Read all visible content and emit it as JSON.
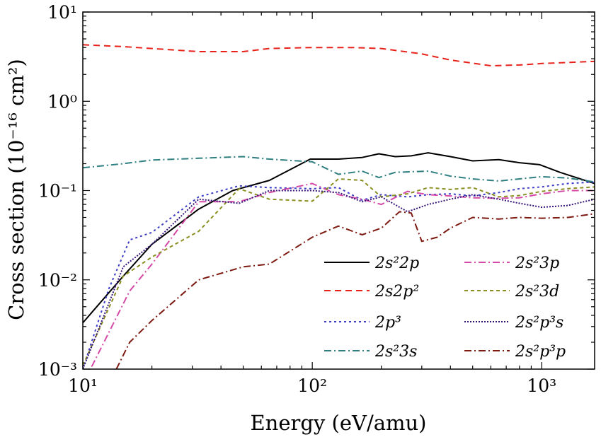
{
  "chart_data": {
    "type": "line",
    "xscale": "log",
    "yscale": "log",
    "xlim": [
      10,
      1700
    ],
    "ylim": [
      0.001,
      10
    ],
    "xlabel": "Energy (eV/amu)",
    "ylabel": "Cross section (10⁻¹⁶ cm²)",
    "x_ticks": [
      10,
      100,
      1000
    ],
    "x_tick_labels": [
      "10¹",
      "10²",
      "10³"
    ],
    "y_ticks": [
      0.001,
      0.01,
      0.1,
      1,
      10
    ],
    "y_tick_labels": [
      "10⁻³",
      "10⁻²",
      "10⁻¹",
      "10⁰",
      "10¹"
    ],
    "legend_position": "lower-right",
    "series": [
      {
        "name": "2s²2p",
        "color": "#000000",
        "dash": "solid",
        "x": [
          10,
          15,
          20,
          32,
          45,
          65,
          98,
          130,
          165,
          195,
          230,
          270,
          320,
          400,
          500,
          650,
          800,
          980,
          1200,
          1700
        ],
        "y": [
          0.0033,
          0.011,
          0.025,
          0.062,
          0.1,
          0.13,
          0.225,
          0.225,
          0.235,
          0.258,
          0.24,
          0.245,
          0.265,
          0.24,
          0.215,
          0.222,
          0.205,
          0.195,
          0.16,
          0.12
        ]
      },
      {
        "name": "2s2p²",
        "color": "#e8221b",
        "dash": "9,6",
        "x": [
          10,
          15,
          20,
          32,
          50,
          65,
          100,
          150,
          200,
          300,
          400,
          600,
          800,
          1000,
          1700
        ],
        "y": [
          4.3,
          4.1,
          3.9,
          3.6,
          3.6,
          3.9,
          4.0,
          4.0,
          3.9,
          3.4,
          2.9,
          2.5,
          2.55,
          2.65,
          2.8
        ]
      },
      {
        "name": "2p³",
        "color": "#3c3cc6",
        "dash": "3,4",
        "x": [
          10,
          13,
          16,
          20,
          32,
          48,
          65,
          100,
          130,
          165,
          200,
          260,
          320,
          400,
          500,
          650,
          800,
          1000,
          1300,
          1700
        ],
        "y": [
          0.001,
          0.008,
          0.028,
          0.034,
          0.085,
          0.113,
          0.108,
          0.105,
          0.108,
          0.078,
          0.09,
          0.085,
          0.09,
          0.092,
          0.087,
          0.095,
          0.105,
          0.11,
          0.12,
          0.125
        ]
      },
      {
        "name": "2s²3s",
        "color": "#2f7f80",
        "dash": "10,4,2,4",
        "x": [
          10,
          15,
          20,
          32,
          50,
          65,
          100,
          130,
          165,
          195,
          230,
          320,
          400,
          500,
          650,
          800,
          1000,
          1300,
          1700
        ],
        "y": [
          0.18,
          0.2,
          0.22,
          0.23,
          0.24,
          0.225,
          0.21,
          0.152,
          0.165,
          0.14,
          0.16,
          0.165,
          0.145,
          0.135,
          0.128,
          0.135,
          0.143,
          0.138,
          0.125
        ]
      },
      {
        "name": "2s²3p",
        "color": "#d54aa6",
        "dash": "10,4,2,4",
        "x": [
          10,
          11,
          16,
          20,
          32,
          48,
          65,
          100,
          130,
          165,
          200,
          260,
          320,
          400,
          500,
          650,
          800,
          1000,
          1300,
          1700
        ],
        "y": [
          0.0008,
          0.0011,
          0.0075,
          0.015,
          0.075,
          0.075,
          0.095,
          0.12,
          0.09,
          0.08,
          0.07,
          0.098,
          0.09,
          0.087,
          0.083,
          0.082,
          0.083,
          0.092,
          0.1,
          0.1
        ]
      },
      {
        "name": "2s²3d",
        "color": "#8a8f22",
        "dash": "5,4",
        "x": [
          10,
          15,
          20,
          32,
          48,
          65,
          100,
          130,
          165,
          200,
          260,
          320,
          400,
          500,
          650,
          800,
          1000,
          1300,
          1700
        ],
        "y": [
          0.0011,
          0.011,
          0.018,
          0.035,
          0.105,
          0.08,
          0.076,
          0.135,
          0.13,
          0.085,
          0.092,
          0.108,
          0.103,
          0.108,
          0.085,
          0.088,
          0.098,
          0.105,
          0.11
        ]
      },
      {
        "name": "2s²p³s",
        "color": "#36147a",
        "dash": "2,2",
        "x": [
          10,
          15,
          20,
          32,
          48,
          65,
          100,
          130,
          165,
          200,
          260,
          320,
          400,
          500,
          650,
          800,
          1000,
          1300,
          1700
        ],
        "y": [
          0.001,
          0.014,
          0.025,
          0.08,
          0.072,
          0.1,
          0.1,
          0.095,
          0.075,
          0.085,
          0.058,
          0.07,
          0.08,
          0.09,
          0.08,
          0.072,
          0.065,
          0.068,
          0.08
        ]
      },
      {
        "name": "2s²p³p",
        "color": "#7d1a12",
        "dash": "10,4,2,4",
        "x": [
          14,
          16,
          20,
          32,
          50,
          65,
          100,
          130,
          165,
          200,
          240,
          270,
          300,
          350,
          400,
          500,
          650,
          800,
          1000,
          1300,
          1700
        ],
        "y": [
          0.001,
          0.002,
          0.0035,
          0.01,
          0.014,
          0.015,
          0.03,
          0.04,
          0.032,
          0.038,
          0.058,
          0.056,
          0.027,
          0.03,
          0.038,
          0.05,
          0.048,
          0.05,
          0.049,
          0.05,
          0.055
        ]
      }
    ]
  }
}
